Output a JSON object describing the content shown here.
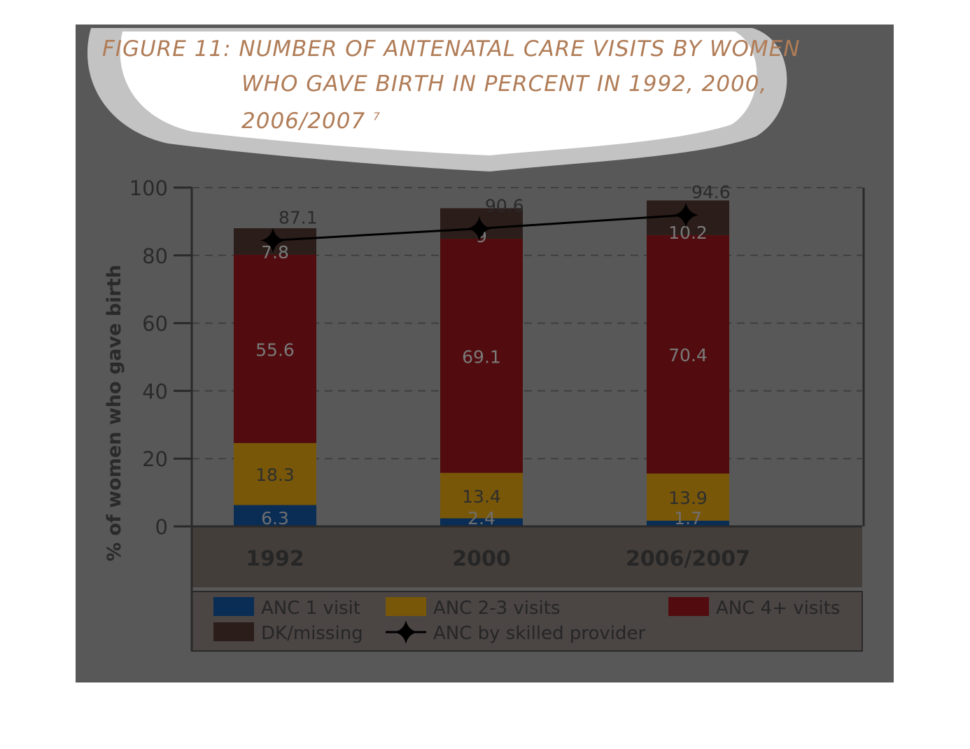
{
  "figure_title": {
    "line1": "FIGURE 11: NUMBER OF ANTENATAL CARE VISITS  BY WOMEN",
    "line2": "WHO GAVE BIRTH IN PERCENT IN 1992, 2000,",
    "line3": "2006/2007",
    "footnote": "7"
  },
  "colors": {
    "anc1": "#0a2d55",
    "anc23": "#795708",
    "anc4": "#520c0f",
    "dk": "#2b1d19",
    "line": "#000000"
  },
  "chart_data": {
    "type": "bar",
    "stacked": true,
    "categories": [
      "1992",
      "2000",
      "2006/2007"
    ],
    "ylabel": "% of women who gave birth",
    "ylim": [
      0,
      100
    ],
    "yticks": [
      "0",
      "20",
      "40",
      "60",
      "80",
      "100"
    ],
    "grid": "dashed horizontal",
    "legend_position": "bottom",
    "series": [
      {
        "name": "ANC 1 visit",
        "values": [
          6.3,
          2.4,
          1.7
        ],
        "labels": [
          "6.3",
          "2.4",
          "1.7"
        ]
      },
      {
        "name": "ANC 2-3 visits",
        "values": [
          18.3,
          13.4,
          13.9
        ],
        "labels": [
          "18.3",
          "13.4",
          "13.9"
        ]
      },
      {
        "name": "ANC 4+ visits",
        "values": [
          55.6,
          69.1,
          70.4
        ],
        "labels": [
          "55.6",
          "69.1",
          "70.4"
        ]
      },
      {
        "name": "DK/missing",
        "values": [
          7.8,
          9,
          10.2
        ],
        "labels": [
          "7.8",
          "9",
          "10.2"
        ]
      }
    ],
    "line_series": {
      "name": "ANC by skilled provider",
      "values": [
        87.1,
        90.6,
        94.6
      ],
      "labels": [
        "87.1",
        "90.6",
        "94.6"
      ]
    }
  }
}
